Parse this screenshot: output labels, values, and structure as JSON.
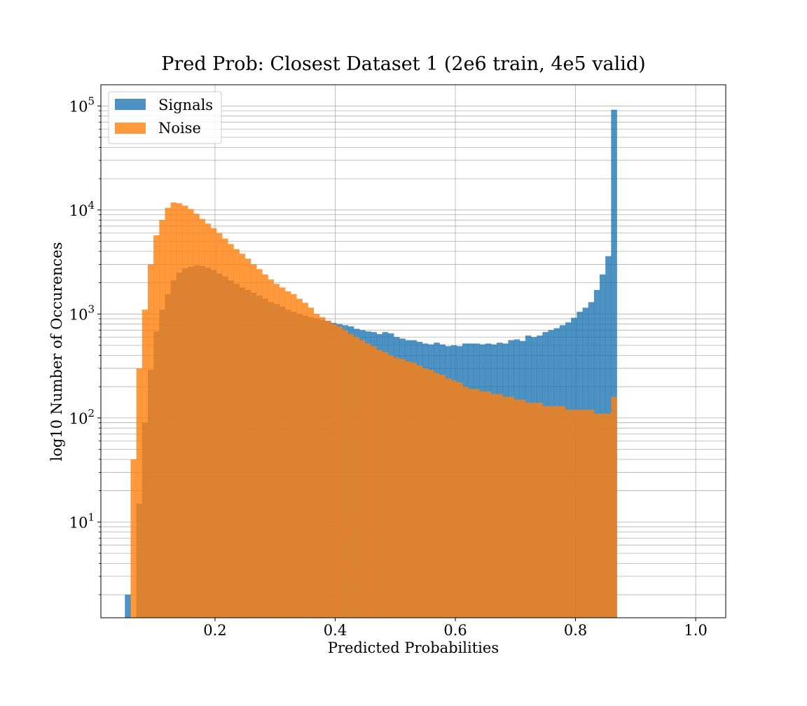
{
  "chart_data": {
    "type": "bar",
    "title": "Pred Prob: Closest Dataset 1 (2e6 train, 4e5 valid)",
    "xlabel": "Predicted Probabilities",
    "ylabel": "log10 Number of Occurences",
    "xlim": [
      0.01,
      1.05
    ],
    "ylim": [
      1.2,
      160000
    ],
    "yscale": "log",
    "grid": true,
    "legend_position": "top-left",
    "bin_start": 0.05,
    "bin_width": 0.00952,
    "x_ticks": [
      0.2,
      0.4,
      0.6,
      0.8,
      1.0
    ],
    "x_tick_labels": [
      "0.2",
      "0.4",
      "0.6",
      "0.8",
      "1.0"
    ],
    "y_ticks": [
      {
        "value": 10,
        "base": "10",
        "exp": "1"
      },
      {
        "value": 100,
        "base": "10",
        "exp": "2"
      },
      {
        "value": 1000,
        "base": "10",
        "exp": "3"
      },
      {
        "value": 10000,
        "base": "10",
        "exp": "4"
      },
      {
        "value": 100000,
        "base": "10",
        "exp": "5"
      }
    ],
    "series": [
      {
        "name": "Signals",
        "color": "#1f77b4",
        "opacity": 0.8,
        "values": [
          2,
          1,
          15,
          90,
          290,
          680,
          1100,
          1550,
          2100,
          2500,
          2750,
          2850,
          2950,
          2900,
          2800,
          2650,
          2450,
          2300,
          2100,
          1950,
          1800,
          1700,
          1600,
          1500,
          1400,
          1300,
          1250,
          1180,
          1100,
          1050,
          1000,
          960,
          930,
          900,
          880,
          860,
          820,
          800,
          780,
          760,
          720,
          700,
          680,
          670,
          640,
          670,
          650,
          600,
          580,
          560,
          560,
          540,
          520,
          510,
          530,
          510,
          490,
          500,
          490,
          520,
          520,
          520,
          510,
          520,
          510,
          530,
          520,
          560,
          570,
          550,
          620,
          600,
          620,
          670,
          700,
          730,
          780,
          830,
          920,
          1050,
          1150,
          1300,
          1700,
          2400,
          3600,
          92000
        ]
      },
      {
        "name": "Noise",
        "color": "#ff7f0e",
        "opacity": 0.8,
        "values": [
          0,
          40,
          300,
          1100,
          3000,
          5700,
          8000,
          10500,
          11800,
          11600,
          11000,
          10200,
          9200,
          8200,
          7400,
          6700,
          6000,
          5300,
          4700,
          4200,
          3800,
          3400,
          3000,
          2700,
          2400,
          2150,
          1950,
          1800,
          1650,
          1550,
          1400,
          1280,
          1150,
          1000,
          930,
          860,
          800,
          760,
          700,
          640,
          600,
          560,
          520,
          490,
          450,
          430,
          400,
          380,
          370,
          350,
          340,
          320,
          300,
          290,
          270,
          260,
          240,
          230,
          220,
          200,
          190,
          190,
          180,
          180,
          170,
          170,
          160,
          160,
          150,
          150,
          140,
          140,
          140,
          130,
          130,
          130,
          130,
          120,
          120,
          120,
          120,
          120,
          110,
          110,
          110,
          160
        ]
      }
    ]
  }
}
